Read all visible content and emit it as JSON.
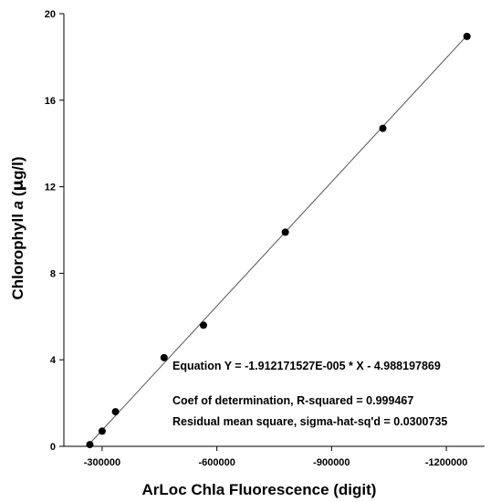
{
  "chart_data": {
    "type": "scatter",
    "xlabel": "ArLoc Chla Fluorescence (digit)",
    "ylabel_parts": [
      "Chlorophyll ",
      "a",
      " (",
      "μ",
      "g/l)"
    ],
    "xlim": [
      -200000,
      -1300000
    ],
    "ylim": [
      0,
      20
    ],
    "x_ticks": [
      -300000,
      -600000,
      -900000,
      -1200000
    ],
    "x_tick_labels": [
      "-300000",
      "-600000",
      "-900000",
      "-1200000"
    ],
    "y_ticks": [
      0,
      4,
      8,
      12,
      16,
      20
    ],
    "y_tick_labels": [
      "0",
      "4",
      "8",
      "12",
      "16",
      "20"
    ],
    "grid": false,
    "points": [
      {
        "x": -268000,
        "y": 0.08
      },
      {
        "x": -300000,
        "y": 0.7
      },
      {
        "x": -335000,
        "y": 1.6
      },
      {
        "x": -462000,
        "y": 4.1
      },
      {
        "x": -565000,
        "y": 5.6
      },
      {
        "x": -779000,
        "y": 9.9
      },
      {
        "x": -1034000,
        "y": 14.7
      },
      {
        "x": -1254000,
        "y": 18.95
      }
    ],
    "fit_line": {
      "slope": -1.912171527e-05,
      "intercept": -4.988197869,
      "x_range": [
        -260000,
        -1254000
      ]
    },
    "annotations": [
      "Equation Y = -1.912171527E-005 * X - 4.988197869",
      "Coef of determination, R-squared = 0.999467",
      "Residual mean square, sigma-hat-sq'd = 0.0300735"
    ],
    "colors": {
      "points": "#000000",
      "line": "#555555",
      "axes": "#000000"
    }
  }
}
